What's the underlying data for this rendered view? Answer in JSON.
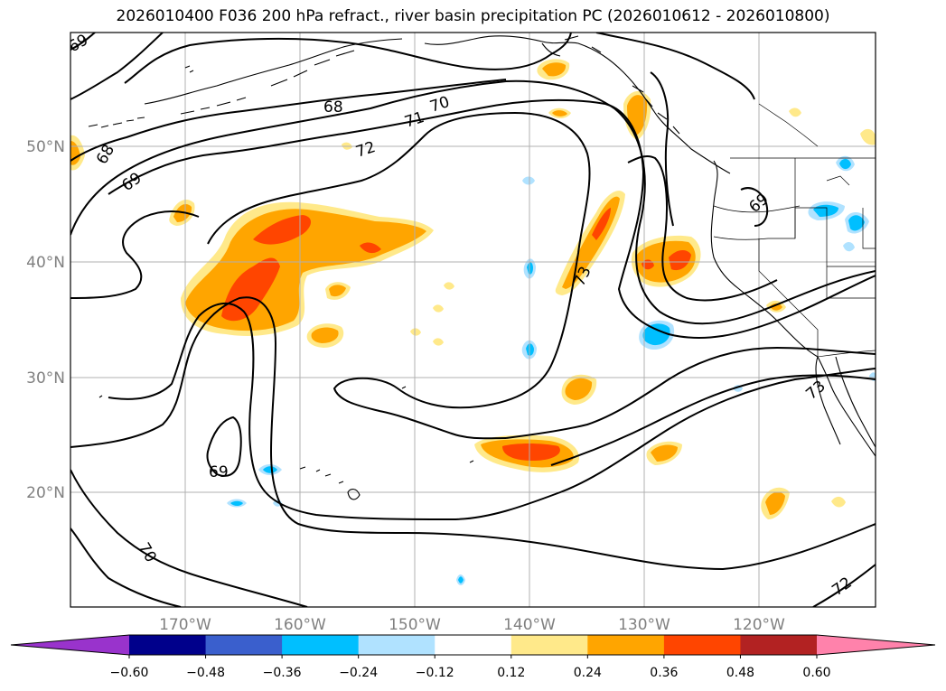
{
  "title": "2026010400 F036 200 hPa refract., river basin precipitation PC (2026010612 - 2026010800)",
  "lat_labels": [
    "50°N",
    "40°N",
    "30°N",
    "20°N"
  ],
  "lon_labels": [
    "170°W",
    "160°W",
    "150°W",
    "140°W",
    "130°W",
    "120°W"
  ],
  "contour_labels": [
    "69",
    "68",
    "68",
    "71",
    "70",
    "72",
    "69",
    "73",
    "69",
    "73",
    "69",
    "70",
    "72"
  ],
  "colorbar": {
    "tick_labels": [
      "−0.60",
      "−0.48",
      "−0.36",
      "−0.24",
      "−0.12",
      "0.12",
      "0.24",
      "0.36",
      "0.48",
      "0.60"
    ],
    "colors": [
      "#9933cc",
      "#00008b",
      "#3a5fcd",
      "#00bfff",
      "#b0e2ff",
      "#ffffff",
      "#ffe98a",
      "#ffa500",
      "#ff4500",
      "#b22222",
      "#ff82ab"
    ],
    "extend": "both"
  },
  "colors": {
    "positive_light": "#ffe98a",
    "positive_mid": "#ffa500",
    "positive_high": "#ff4500",
    "negative_light": "#b0e2ff",
    "negative_mid": "#00bfff"
  }
}
